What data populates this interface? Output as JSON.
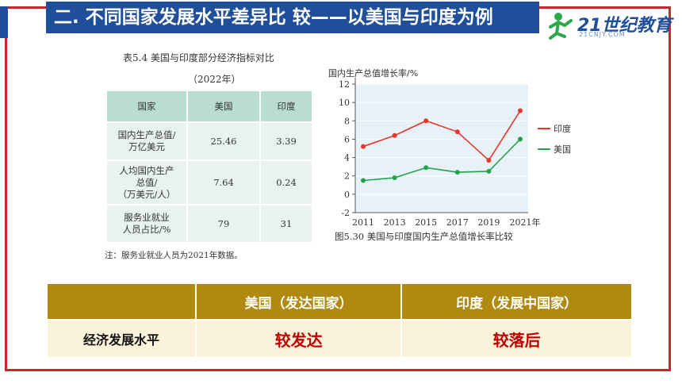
{
  "header": {
    "title": "二. 不同国家发展水平差异比  较——以美国与印度为例",
    "logo_text": "21世纪教育",
    "logo_sub": "21CNJY.COM",
    "colors": {
      "title_bg": "#1f4e9a",
      "frame": "#d0272e"
    }
  },
  "table": {
    "caption": "表5.4  美国与印度部分经济指标对比",
    "year": "（2022年）",
    "headers": [
      "国家",
      "美国",
      "印度"
    ],
    "rows": [
      {
        "label": "国内生产总值/\n万亿美元",
        "us": "25.46",
        "in": "3.39"
      },
      {
        "label": "人均国内生产\n总值/\n（万美元/人）",
        "us": "7.64",
        "in": "0.24"
      },
      {
        "label": "服务业就业\n人员占比/%",
        "us": "79",
        "in": "31"
      }
    ],
    "note": "注：服务业就业人员为2021年数据。"
  },
  "chart_data": {
    "type": "line",
    "title": "",
    "ylabel": "国内生产总值增长率/%",
    "x": [
      "2011",
      "2013",
      "2015",
      "2017",
      "2019",
      "2021年"
    ],
    "ylim": [
      -2,
      12
    ],
    "yticks": [
      "-2",
      "0",
      "2",
      "4",
      "6",
      "8",
      "10",
      "12"
    ],
    "caption": "图5.30  美国与印度国内生产总值增长率比较",
    "legend_position": "right",
    "series": [
      {
        "name": "印度",
        "color": "#e8372a",
        "values": [
          5.2,
          6.4,
          8.0,
          6.8,
          3.7,
          9.1
        ]
      },
      {
        "name": "美国",
        "color": "#23a34e",
        "values": [
          1.5,
          1.8,
          2.9,
          2.4,
          2.5,
          6.0
        ]
      }
    ]
  },
  "summary": {
    "col_us": "美国（发达国家）",
    "col_in": "印度（发展中国家）",
    "row_label": "经济发展水平",
    "us_value": "较发达",
    "in_value": "较落后"
  }
}
